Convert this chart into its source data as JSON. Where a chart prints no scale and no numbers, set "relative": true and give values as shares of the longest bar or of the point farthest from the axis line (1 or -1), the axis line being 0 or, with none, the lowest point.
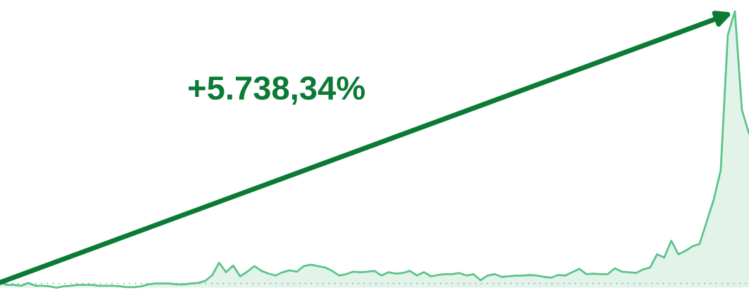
{
  "chart_data": {
    "type": "area",
    "relative": true,
    "categories": [
      null,
      null,
      null,
      null,
      null,
      null,
      null,
      null,
      null,
      null,
      null,
      null,
      null,
      null,
      null,
      null,
      null,
      null,
      null,
      null,
      null,
      null,
      null,
      null,
      null,
      null,
      null,
      null,
      null,
      null,
      null,
      null,
      null,
      null,
      null,
      null,
      null,
      null,
      null,
      null,
      null,
      null,
      null,
      null,
      null,
      null,
      null,
      null,
      null,
      null,
      null,
      null,
      null,
      null,
      null,
      null,
      null,
      null,
      null,
      null,
      null,
      null,
      null,
      null,
      null,
      null,
      null,
      null,
      null,
      null,
      null,
      null,
      null,
      null,
      null,
      null,
      null,
      null,
      null,
      null,
      null,
      null,
      null,
      null,
      null,
      null,
      null,
      null,
      null,
      null,
      null,
      null,
      null,
      null,
      null,
      null,
      null,
      null,
      null,
      null,
      null,
      null,
      null,
      null,
      null,
      null,
      null
    ],
    "series": [
      {
        "color": "#5cc489",
        "values": [
          0.019,
          0.01,
          0.01,
          0.007,
          0.017,
          0.007,
          0.007,
          0.005,
          0,
          0.005,
          0.007,
          0.01,
          0.01,
          0.01,
          0.007,
          0.007,
          0.007,
          0.005,
          0.002,
          0.002,
          0.005,
          0.012,
          0.015,
          0.015,
          0.015,
          0.012,
          0.012,
          0.015,
          0.017,
          0.024,
          0.044,
          0.09,
          0.056,
          0.08,
          0.041,
          0.058,
          0.078,
          0.061,
          0.051,
          0.044,
          0.056,
          0.063,
          0.058,
          0.078,
          0.083,
          0.078,
          0.073,
          0.061,
          0.044,
          0.049,
          0.058,
          0.056,
          0.058,
          0.061,
          0.044,
          0.056,
          0.051,
          0.053,
          0.061,
          0.044,
          0.056,
          0.041,
          0.046,
          0.049,
          0.049,
          0.053,
          0.044,
          0.049,
          0.027,
          0.044,
          0.049,
          0.039,
          0.041,
          0.044,
          0.044,
          0.046,
          0.044,
          0.039,
          0.036,
          0.046,
          0.044,
          0.056,
          0.068,
          0.049,
          0.051,
          0.049,
          0.049,
          0.07,
          0.058,
          0.056,
          0.053,
          0.066,
          0.073,
          0.121,
          0.109,
          0.17,
          0.121,
          0.133,
          0.15,
          0.158,
          0.238,
          0.318,
          0.425,
          0.915,
          1,
          0.643,
          0.558
        ]
      }
    ],
    "ref_lines": [
      {
        "axis": "y",
        "value": 0.015,
        "color": "#9aa0a6",
        "line_style": "dotted"
      }
    ],
    "annotations": [
      "+5.738,34%"
    ]
  }
}
